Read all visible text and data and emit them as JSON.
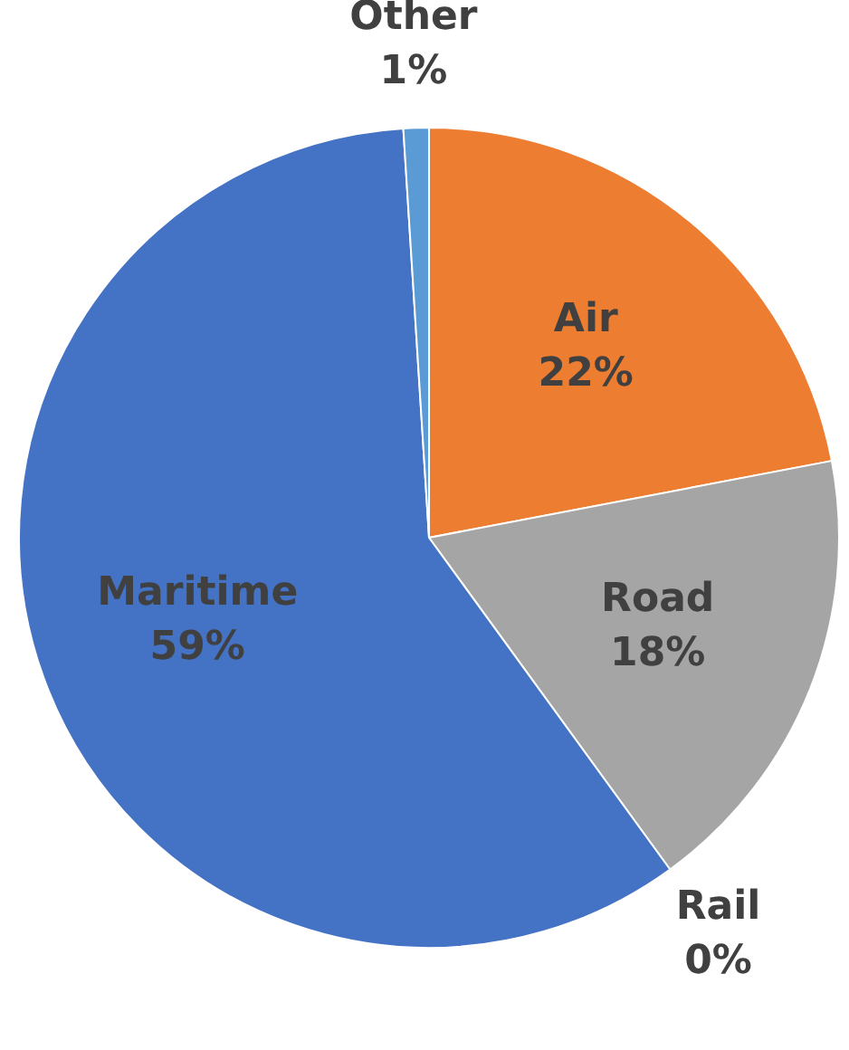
{
  "chart_data": {
    "type": "pie",
    "categories": [
      "Air",
      "Road",
      "Rail",
      "Maritime",
      "Other"
    ],
    "values": [
      22,
      18,
      0,
      59,
      1
    ],
    "value_labels": [
      "22%",
      "18%",
      "0%",
      "59%",
      "1%"
    ],
    "colors": [
      "#ed7d31",
      "#a5a5a5",
      "#ffc000",
      "#4472c4",
      "#5b9bd5"
    ],
    "legend": false
  }
}
